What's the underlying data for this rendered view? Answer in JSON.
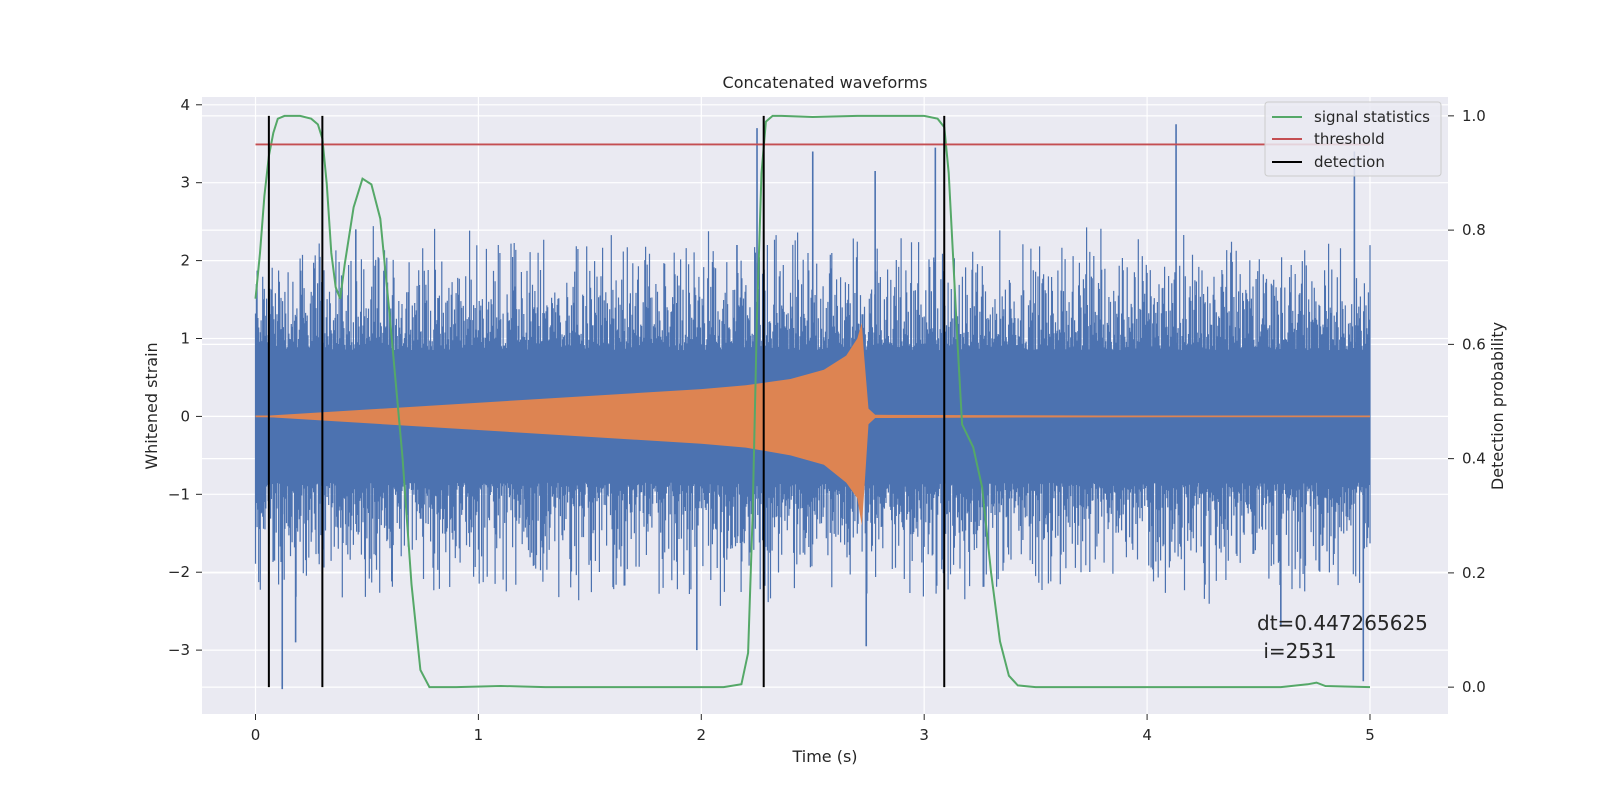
{
  "chart_data": {
    "type": "line",
    "title": "Concatenated waveforms",
    "xlabel": "Time (s)",
    "ylabel": "Whitened strain",
    "ylabel_right": "Detection probability",
    "xlim": [
      -0.24,
      5.35
    ],
    "ylim": [
      -3.82,
      4.1
    ],
    "ylim_right": [
      -0.047,
      1.033
    ],
    "x_ticks": [
      0,
      1,
      2,
      3,
      4,
      5
    ],
    "x_tick_labels": [
      "0",
      "1",
      "2",
      "3",
      "4",
      "5"
    ],
    "y_ticks": [
      -3,
      -2,
      -1,
      0,
      1,
      2,
      3,
      4
    ],
    "y_tick_labels": [
      "−3",
      "−2",
      "−1",
      "0",
      "1",
      "2",
      "3",
      "4"
    ],
    "y_ticks_right": [
      0.0,
      0.2,
      0.4,
      0.6,
      0.8,
      1.0
    ],
    "y_tick_labels_right": [
      "0.0",
      "0.2",
      "0.4",
      "0.6",
      "0.8",
      "1.0"
    ],
    "grid": true,
    "legend_position": "top-right",
    "colors": {
      "background": "#eaeaf2",
      "grid": "#ffffff",
      "noise": "#4c72b0",
      "template": "#dd8452",
      "signal_statistics": "#55a868",
      "threshold": "#c44e52",
      "detection": "#000000"
    },
    "series": [
      {
        "name": "signal statistics",
        "axis": "right",
        "x": [
          0.0,
          0.02,
          0.04,
          0.06,
          0.08,
          0.1,
          0.13,
          0.16,
          0.2,
          0.25,
          0.28,
          0.3,
          0.32,
          0.34,
          0.36,
          0.38,
          0.4,
          0.44,
          0.48,
          0.52,
          0.56,
          0.6,
          0.63,
          0.66,
          0.7,
          0.74,
          0.78,
          0.9,
          1.1,
          1.3,
          1.6,
          1.9,
          2.1,
          2.18,
          2.21,
          2.23,
          2.25,
          2.27,
          2.29,
          2.32,
          2.36,
          2.5,
          2.7,
          2.8,
          3.0,
          3.06,
          3.09,
          3.11,
          3.13,
          3.15,
          3.17,
          3.22,
          3.26,
          3.3,
          3.34,
          3.38,
          3.42,
          3.5,
          3.7,
          4.0,
          4.3,
          4.6,
          4.72,
          4.76,
          4.8,
          5.0
        ],
        "values": [
          0.68,
          0.76,
          0.86,
          0.93,
          0.97,
          0.995,
          1.0,
          1.0,
          1.0,
          0.995,
          0.985,
          0.96,
          0.88,
          0.76,
          0.7,
          0.68,
          0.74,
          0.84,
          0.89,
          0.88,
          0.82,
          0.66,
          0.53,
          0.4,
          0.18,
          0.03,
          0.0,
          0.0,
          0.002,
          0.0,
          0.0,
          0.0,
          0.0,
          0.005,
          0.06,
          0.3,
          0.65,
          0.9,
          0.99,
          1.0,
          1.0,
          0.998,
          1.0,
          1.0,
          1.0,
          0.995,
          0.98,
          0.9,
          0.75,
          0.6,
          0.46,
          0.42,
          0.35,
          0.2,
          0.08,
          0.02,
          0.003,
          0.0,
          0.0,
          0.0,
          0.0,
          0.0,
          0.005,
          0.008,
          0.002,
          0.0
        ]
      },
      {
        "name": "threshold",
        "axis": "right",
        "x": [
          0.0,
          5.0
        ],
        "values": [
          0.95,
          0.95
        ]
      },
      {
        "name": "detection",
        "axis": "right",
        "type": "vlines",
        "x": [
          0.06,
          0.3,
          2.28,
          3.09
        ],
        "ymin": 0.0,
        "ymax": 1.0
      },
      {
        "name": "",
        "axis": "left",
        "type": "noise",
        "x": [
          0.0,
          5.0
        ],
        "core_amplitude": 0.85,
        "peak_amplitude": 2.5,
        "outliers": [
          {
            "x": 0.12,
            "value": -3.5
          },
          {
            "x": 0.18,
            "value": -2.9
          },
          {
            "x": 0.45,
            "value": 2.4
          },
          {
            "x": 1.98,
            "value": -3.0
          },
          {
            "x": 2.16,
            "value": 2.2
          },
          {
            "x": 2.25,
            "value": 3.7
          },
          {
            "x": 2.5,
            "value": 3.4
          },
          {
            "x": 2.74,
            "value": -2.95
          },
          {
            "x": 2.78,
            "value": 3.15
          },
          {
            "x": 3.05,
            "value": 3.45
          },
          {
            "x": 4.13,
            "value": 3.75
          },
          {
            "x": 4.6,
            "value": -2.7
          },
          {
            "x": 4.97,
            "value": -3.4
          },
          {
            "x": 4.93,
            "value": 3.4
          }
        ]
      },
      {
        "name": "",
        "axis": "left",
        "type": "chirp",
        "x": [
          0.0,
          2.0,
          2.2,
          2.4,
          2.55,
          2.65,
          2.7,
          2.72,
          2.73,
          2.75,
          2.78,
          5.0
        ],
        "envelope": [
          0.0,
          0.35,
          0.4,
          0.48,
          0.6,
          0.78,
          1.0,
          1.2,
          0.8,
          0.1,
          0.02,
          0.0
        ],
        "envelope_low": [
          0.0,
          -0.35,
          -0.4,
          -0.5,
          -0.62,
          -0.85,
          -1.05,
          -1.4,
          -1.0,
          -0.1,
          -0.02,
          0.0
        ]
      }
    ],
    "annotation": {
      "line1": "dt=0.447265625",
      "line2": " i=2531",
      "x": 4.5,
      "y": 0.095
    }
  }
}
